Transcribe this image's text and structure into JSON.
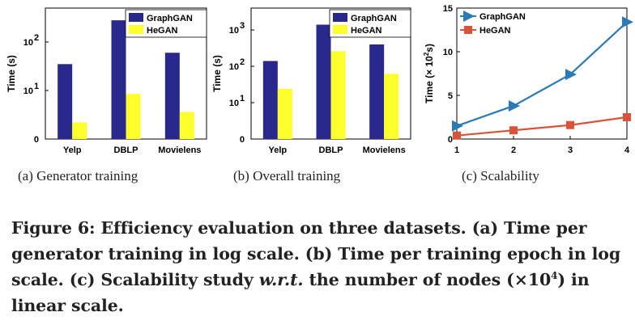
{
  "chart_data": [
    {
      "type": "bar",
      "panel": "a",
      "title": "",
      "ylabel": "Time (s)",
      "yscale": "log",
      "ylim": [
        1,
        500
      ],
      "categories": [
        "Yelp",
        "DBLP",
        "Movielens"
      ],
      "series": [
        {
          "name": "GraphGAN",
          "color": "#29288c",
          "values": [
            35,
            280,
            60
          ]
        },
        {
          "name": "HeGAN",
          "color": "#ffff2b",
          "values": [
            2.2,
            8.5,
            3.6
          ]
        }
      ],
      "yticks": [
        {
          "v": 1,
          "base": "0",
          "exp": ""
        },
        {
          "v": 10,
          "base": "10",
          "exp": "1"
        },
        {
          "v": 100,
          "base": "10",
          "exp": "2"
        }
      ],
      "legend_position": "top-right",
      "caption": "(a)  Generator training"
    },
    {
      "type": "bar",
      "panel": "b",
      "title": "",
      "ylabel": "Time (s)",
      "yscale": "log",
      "ylim": [
        1,
        4000
      ],
      "categories": [
        "Yelp",
        "DBLP",
        "Movielens"
      ],
      "series": [
        {
          "name": "GraphGAN",
          "color": "#29288c",
          "values": [
            140,
            1400,
            400
          ]
        },
        {
          "name": "HeGAN",
          "color": "#ffff2b",
          "values": [
            24,
            260,
            62
          ]
        }
      ],
      "yticks": [
        {
          "v": 1,
          "base": "0",
          "exp": ""
        },
        {
          "v": 10,
          "base": "10",
          "exp": "1"
        },
        {
          "v": 100,
          "base": "10",
          "exp": "2"
        },
        {
          "v": 1000,
          "base": "10",
          "exp": "3"
        }
      ],
      "legend_position": "top-right",
      "caption": "(b)  Overall training"
    },
    {
      "type": "line",
      "panel": "c",
      "title": "",
      "ylabel": "Time (× 10",
      "ylabel_exp": "2",
      "ylabel_end": "s)",
      "yscale": "linear",
      "ylim": [
        0,
        15
      ],
      "xlim": [
        1,
        4
      ],
      "x": [
        1,
        2,
        3,
        4
      ],
      "yticks": [
        0,
        5,
        10,
        15
      ],
      "series": [
        {
          "name": "GraphGAN",
          "color": "#2c7ab3",
          "marker": "triangle-right",
          "values": [
            1.5,
            3.8,
            7.4,
            13.4
          ]
        },
        {
          "name": "HeGAN",
          "color": "#d9533a",
          "marker": "square",
          "values": [
            0.4,
            1.0,
            1.6,
            2.5
          ]
        }
      ],
      "legend_position": "top-left",
      "caption": "(c)  Scalability"
    }
  ],
  "figure_caption": {
    "part1": "Figure 6: Efficiency evaluation on three datasets. (a) Time per generator training in log scale. (b) Time per training epoch in log scale. (c) Scalability study ",
    "wrt": "w.r.t.",
    "part2": " the number of nodes (×10",
    "exp": "4",
    "part3": ") in linear scale."
  }
}
